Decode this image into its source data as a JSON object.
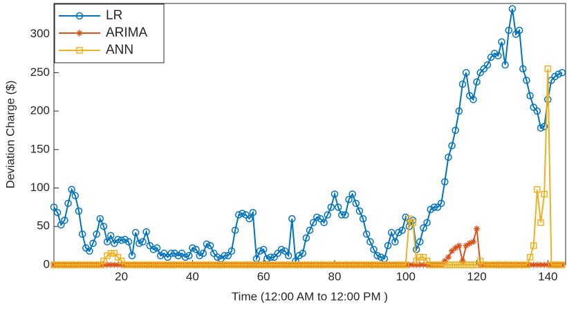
{
  "chart_data": {
    "type": "line",
    "xlabel": "Time (12:00 AM to 12:00 PM )",
    "ylabel": "Deviation Charge ($)",
    "x": [
      1,
      2,
      3,
      4,
      5,
      6,
      7,
      8,
      9,
      10,
      11,
      12,
      13,
      14,
      15,
      16,
      17,
      18,
      19,
      20,
      21,
      22,
      23,
      24,
      25,
      26,
      27,
      28,
      29,
      30,
      31,
      32,
      33,
      34,
      35,
      36,
      37,
      38,
      39,
      40,
      41,
      42,
      43,
      44,
      45,
      46,
      47,
      48,
      49,
      50,
      51,
      52,
      53,
      54,
      55,
      56,
      57,
      58,
      59,
      60,
      61,
      62,
      63,
      64,
      65,
      66,
      67,
      68,
      69,
      70,
      71,
      72,
      73,
      74,
      75,
      76,
      77,
      78,
      79,
      80,
      81,
      82,
      83,
      84,
      85,
      86,
      87,
      88,
      89,
      90,
      91,
      92,
      93,
      94,
      95,
      96,
      97,
      98,
      99,
      100,
      101,
      102,
      103,
      104,
      105,
      106,
      107,
      108,
      109,
      110,
      111,
      112,
      113,
      114,
      115,
      116,
      117,
      118,
      119,
      120,
      121,
      122,
      123,
      124,
      125,
      126,
      127,
      128,
      129,
      130,
      131,
      132,
      133,
      134,
      135,
      136,
      137,
      138,
      139,
      140,
      141,
      142,
      143,
      144
    ],
    "xlim": [
      1,
      145
    ],
    "xticks": [
      20,
      40,
      60,
      80,
      100,
      120,
      140
    ],
    "ylim": [
      0,
      340
    ],
    "yticks": [
      0,
      50,
      100,
      150,
      200,
      250,
      300
    ],
    "legend": "upper left",
    "series": [
      {
        "name": "LR",
        "color": "#0072BD",
        "marker": "circle",
        "values": [
          75,
          68,
          52,
          58,
          80,
          98,
          90,
          70,
          40,
          22,
          18,
          28,
          40,
          60,
          50,
          30,
          38,
          28,
          33,
          32,
          33,
          30,
          12,
          42,
          28,
          30,
          43,
          25,
          20,
          22,
          12,
          15,
          10,
          15,
          15,
          12,
          15,
          10,
          12,
          22,
          20,
          12,
          15,
          27,
          25,
          15,
          10,
          8,
          12,
          12,
          18,
          45,
          65,
          67,
          65,
          60,
          68,
          8,
          18,
          20,
          8,
          10,
          10,
          15,
          20,
          18,
          12,
          60,
          5,
          12,
          15,
          35,
          45,
          55,
          62,
          60,
          55,
          65,
          75,
          92,
          75,
          65,
          65,
          85,
          92,
          80,
          70,
          60,
          40,
          30,
          20,
          12,
          10,
          8,
          25,
          42,
          30,
          42,
          45,
          62,
          50,
          58,
          20,
          30,
          48,
          55,
          72,
          75,
          75,
          80,
          108,
          140,
          155,
          175,
          200,
          235,
          250,
          220,
          215,
          238,
          250,
          255,
          260,
          270,
          275,
          272,
          290,
          260,
          305,
          333,
          300,
          305,
          255,
          240,
          220,
          205,
          200,
          178,
          180,
          215,
          240,
          245,
          248,
          250
        ]
      },
      {
        "name": "ARIMA",
        "color": "#D95319",
        "marker": "asterisk",
        "values": [
          0,
          0,
          0,
          0,
          0,
          0,
          0,
          0,
          0,
          0,
          0,
          0,
          0,
          0,
          0,
          0,
          0,
          0,
          0,
          0,
          0,
          0,
          0,
          0,
          0,
          0,
          0,
          0,
          0,
          0,
          0,
          0,
          0,
          0,
          0,
          0,
          0,
          0,
          0,
          0,
          0,
          0,
          0,
          0,
          0,
          0,
          0,
          0,
          0,
          0,
          0,
          0,
          0,
          0,
          0,
          0,
          0,
          0,
          0,
          0,
          0,
          0,
          0,
          0,
          0,
          0,
          0,
          0,
          0,
          0,
          0,
          0,
          0,
          0,
          0,
          0,
          0,
          0,
          0,
          0,
          0,
          0,
          0,
          0,
          0,
          0,
          0,
          0,
          0,
          0,
          0,
          0,
          0,
          0,
          0,
          0,
          0,
          0,
          0,
          0,
          0,
          0,
          0,
          0,
          0,
          0,
          0,
          0,
          0,
          0,
          5,
          10,
          18,
          22,
          25,
          5,
          25,
          28,
          30,
          47,
          0,
          0,
          0,
          0,
          0,
          0,
          0,
          0,
          0,
          0,
          0,
          0,
          0,
          0,
          0,
          0,
          0,
          0,
          0,
          0,
          0,
          0,
          0,
          0
        ]
      },
      {
        "name": "ANN",
        "color": "#EDB120",
        "marker": "square",
        "values": [
          0,
          0,
          0,
          0,
          0,
          0,
          0,
          0,
          0,
          0,
          0,
          0,
          0,
          0,
          5,
          12,
          15,
          15,
          10,
          5,
          0,
          0,
          0,
          0,
          0,
          0,
          0,
          0,
          0,
          0,
          0,
          0,
          0,
          0,
          0,
          0,
          0,
          0,
          0,
          0,
          0,
          0,
          0,
          0,
          0,
          0,
          0,
          0,
          0,
          0,
          0,
          0,
          0,
          0,
          0,
          0,
          0,
          0,
          0,
          0,
          0,
          0,
          0,
          0,
          0,
          0,
          0,
          0,
          0,
          0,
          0,
          0,
          0,
          0,
          0,
          0,
          0,
          0,
          0,
          0,
          0,
          0,
          0,
          0,
          0,
          0,
          0,
          0,
          0,
          0,
          0,
          0,
          0,
          0,
          0,
          0,
          0,
          0,
          0,
          0,
          60,
          55,
          5,
          10,
          10,
          5,
          0,
          0,
          0,
          0,
          0,
          0,
          0,
          0,
          0,
          0,
          0,
          0,
          0,
          0,
          5,
          0,
          0,
          0,
          0,
          0,
          0,
          0,
          0,
          0,
          0,
          0,
          0,
          0,
          10,
          25,
          98,
          55,
          92,
          255,
          0,
          0,
          0,
          0
        ]
      }
    ]
  }
}
